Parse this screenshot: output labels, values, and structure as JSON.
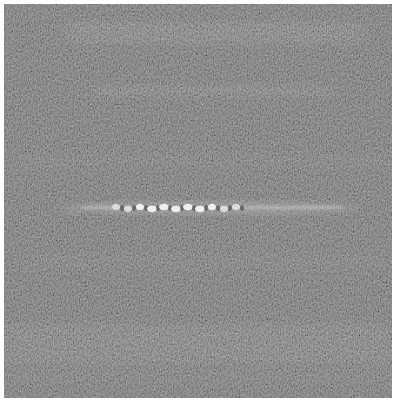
{
  "image": {
    "subject": "grayscale-noisy-micrograph",
    "feature": "bright-horizontal-streak-beaded",
    "palette": {
      "background_gray": "#5c5c5c",
      "dark_gray": "#3e3e3e",
      "light_gray": "#8a8a8a",
      "highlight": "#f2f2f2",
      "frame": "#ffffff"
    }
  }
}
